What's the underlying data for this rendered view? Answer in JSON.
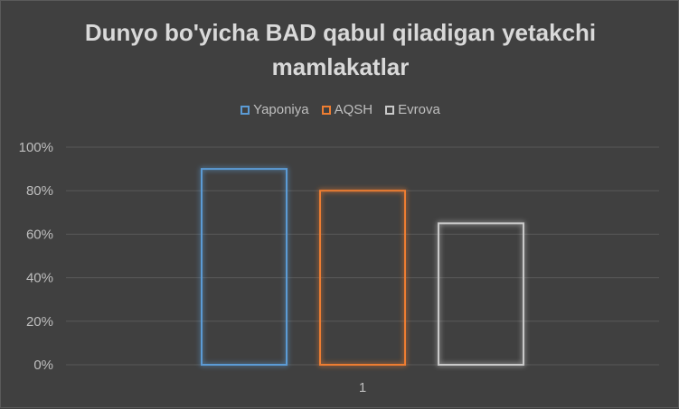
{
  "chart_data": {
    "type": "bar",
    "title": "Dunyo bo'yicha BAD qabul qiladigan yetakchi mamlakatlar",
    "categories": [
      "1"
    ],
    "series": [
      {
        "name": "Yaponiya",
        "values": [
          0.9
        ],
        "color": "#5b9bd5"
      },
      {
        "name": "AQSH",
        "values": [
          0.8
        ],
        "color": "#ed7d31"
      },
      {
        "name": "Evrova",
        "values": [
          0.65
        ],
        "color": "#c9c9c9"
      }
    ],
    "yticks": [
      "0%",
      "20%",
      "40%",
      "60%",
      "80%",
      "100%"
    ],
    "ylim": [
      0,
      1
    ],
    "grid": true,
    "legend": "top"
  }
}
